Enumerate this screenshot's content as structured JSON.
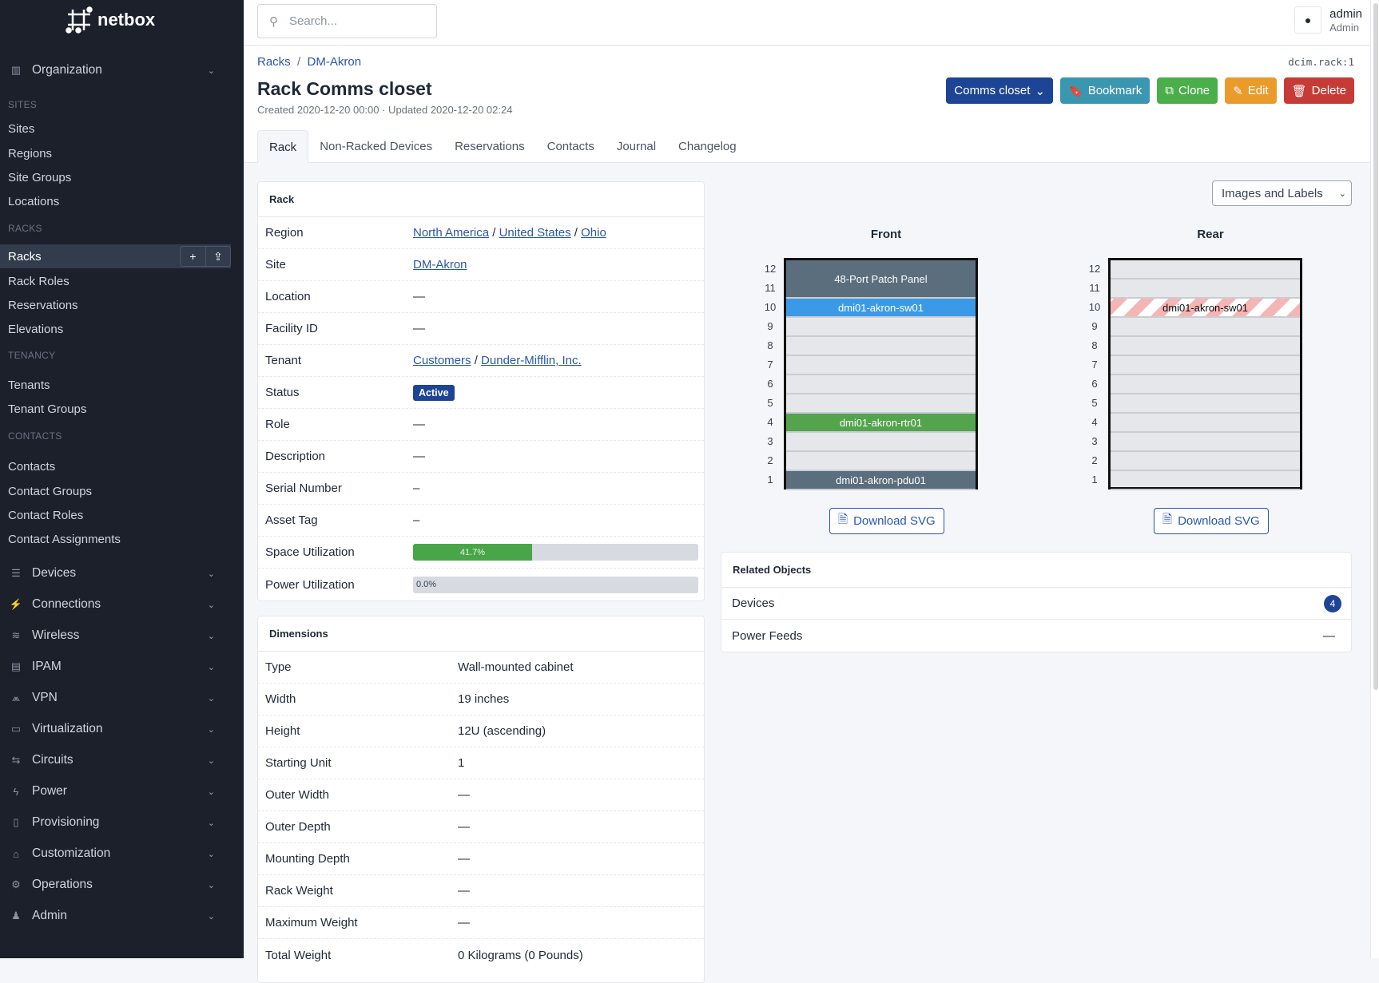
{
  "brand": "netbox",
  "search": {
    "placeholder": "Search..."
  },
  "user": {
    "name": "admin",
    "role": "Admin"
  },
  "sidebar": [
    {
      "type": "group",
      "label": "Organization",
      "icon": "building-icon"
    },
    {
      "type": "section",
      "label": "SITES"
    },
    {
      "type": "item",
      "label": "Sites"
    },
    {
      "type": "item",
      "label": "Regions"
    },
    {
      "type": "item",
      "label": "Site Groups"
    },
    {
      "type": "item",
      "label": "Locations"
    },
    {
      "type": "section",
      "label": "RACKS"
    },
    {
      "type": "item",
      "label": "Racks",
      "active": true
    },
    {
      "type": "item",
      "label": "Rack Roles"
    },
    {
      "type": "item",
      "label": "Reservations"
    },
    {
      "type": "item",
      "label": "Elevations"
    },
    {
      "type": "section",
      "label": "TENANCY"
    },
    {
      "type": "item",
      "label": "Tenants"
    },
    {
      "type": "item",
      "label": "Tenant Groups"
    },
    {
      "type": "section",
      "label": "CONTACTS"
    },
    {
      "type": "item",
      "label": "Contacts"
    },
    {
      "type": "item",
      "label": "Contact Groups"
    },
    {
      "type": "item",
      "label": "Contact Roles"
    },
    {
      "type": "item",
      "label": "Contact Assignments"
    },
    {
      "type": "group",
      "label": "Devices",
      "icon": "server-icon"
    },
    {
      "type": "group",
      "label": "Connections",
      "icon": "plug-icon"
    },
    {
      "type": "group",
      "label": "Wireless",
      "icon": "wifi-icon"
    },
    {
      "type": "group",
      "label": "IPAM",
      "icon": "counter-icon"
    },
    {
      "type": "group",
      "label": "VPN",
      "icon": "tunnel-icon"
    },
    {
      "type": "group",
      "label": "Virtualization",
      "icon": "monitor-icon"
    },
    {
      "type": "group",
      "label": "Circuits",
      "icon": "circuit-icon"
    },
    {
      "type": "group",
      "label": "Power",
      "icon": "flash-icon"
    },
    {
      "type": "group",
      "label": "Provisioning",
      "icon": "file-icon"
    },
    {
      "type": "group",
      "label": "Customization",
      "icon": "toolbox-icon"
    },
    {
      "type": "group",
      "label": "Operations",
      "icon": "cogs-icon"
    },
    {
      "type": "group",
      "label": "Admin",
      "icon": "users-icon"
    }
  ],
  "breadcrumb": [
    "Racks",
    "DM-Akron"
  ],
  "object_id": "dcim.rack:1",
  "title": "Rack Comms closet",
  "meta": "Created 2020-12-20 00:00 · Updated 2020-12-20 02:24",
  "actions": [
    {
      "label": "Comms closet",
      "color": "#1e4595",
      "icon": "chevron-down-icon"
    },
    {
      "label": "Bookmark",
      "color": "#3b97b0",
      "icon": "bookmark-icon"
    },
    {
      "label": "Clone",
      "color": "#4aae4a",
      "icon": "copy-icon"
    },
    {
      "label": "Edit",
      "color": "#eb9b2c",
      "icon": "pencil-icon"
    },
    {
      "label": "Delete",
      "color": "#c73b36",
      "icon": "trash-icon"
    }
  ],
  "tabs": [
    "Rack",
    "Non-Racked Devices",
    "Reservations",
    "Contacts",
    "Journal",
    "Changelog"
  ],
  "rack_card": {
    "title": "Rack",
    "rows": [
      {
        "k": "Region",
        "links": [
          "North America",
          "United States",
          "Ohio"
        ]
      },
      {
        "k": "Site",
        "links": [
          "DM-Akron"
        ]
      },
      {
        "k": "Location",
        "v": "—"
      },
      {
        "k": "Facility ID",
        "v": "—"
      },
      {
        "k": "Tenant",
        "links": [
          "Customers",
          "Dunder-Mifflin, Inc."
        ]
      },
      {
        "k": "Status",
        "badge": "Active"
      },
      {
        "k": "Role",
        "v": "—"
      },
      {
        "k": "Description",
        "v": "—"
      },
      {
        "k": "Serial Number",
        "v": "–"
      },
      {
        "k": "Asset Tag",
        "v": "–"
      },
      {
        "k": "Space Utilization",
        "progress": 41.7,
        "label": "41.7%"
      },
      {
        "k": "Power Utilization",
        "progress": 0,
        "label": "0.0%"
      }
    ]
  },
  "dimensions_card": {
    "title": "Dimensions",
    "rows": [
      {
        "k": "Type",
        "v": "Wall-mounted cabinet"
      },
      {
        "k": "Width",
        "v": "19 inches"
      },
      {
        "k": "Height",
        "v": "12U (ascending)"
      },
      {
        "k": "Starting Unit",
        "v": "1"
      },
      {
        "k": "Outer Width",
        "v": "—"
      },
      {
        "k": "Outer Depth",
        "v": "—"
      },
      {
        "k": "Mounting Depth",
        "v": "—"
      },
      {
        "k": "Rack Weight",
        "v": "—"
      },
      {
        "k": "Maximum Weight",
        "v": "—"
      },
      {
        "k": "Total Weight",
        "v": "0 Kilograms (0 Pounds)"
      }
    ]
  },
  "elevation": {
    "view_select": "Images and Labels",
    "units": 12,
    "front": {
      "title": "Front",
      "devices": [
        {
          "name": "48-Port Patch Panel",
          "position": 11,
          "height": 2,
          "color": "#5b6e7d"
        },
        {
          "name": "dmi01-akron-sw01",
          "position": 10,
          "height": 1,
          "color": "#3b9ae8"
        },
        {
          "name": "dmi01-akron-rtr01",
          "position": 4,
          "height": 1,
          "color": "#54a34d"
        },
        {
          "name": "dmi01-akron-pdu01",
          "position": 1,
          "height": 1,
          "color": "#5b6e7d"
        }
      ]
    },
    "rear": {
      "title": "Rear",
      "devices": [
        {
          "name": "dmi01-akron-sw01",
          "position": 10,
          "height": 1,
          "color": "#f5b5b5",
          "striped": true
        }
      ]
    },
    "download_label": "Download SVG"
  },
  "related": {
    "title": "Related Objects",
    "rows": [
      {
        "label": "Devices",
        "count": "4"
      },
      {
        "label": "Power Feeds",
        "value": "—"
      }
    ]
  }
}
